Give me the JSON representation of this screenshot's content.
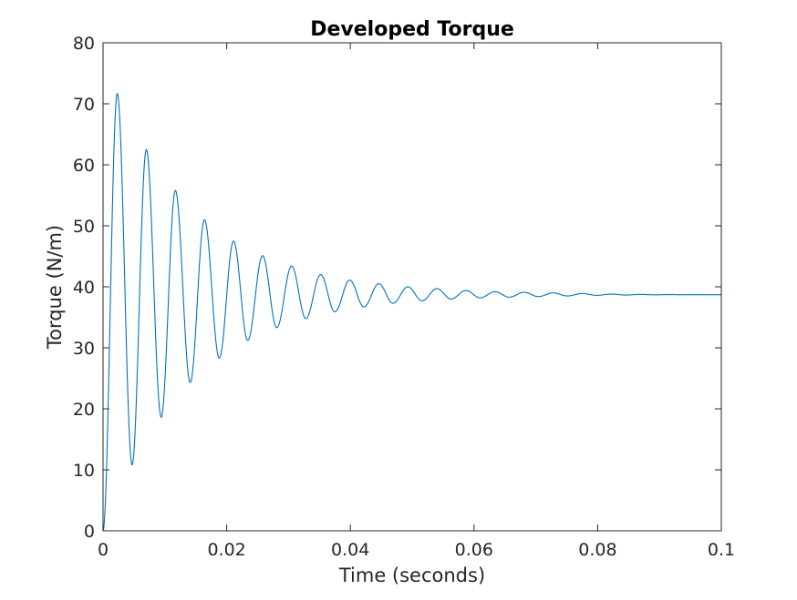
{
  "chart_data": {
    "type": "line",
    "title": "Developed Torque",
    "xlabel": "Time (seconds)",
    "ylabel": "Torque (N/m)",
    "xlim": [
      0,
      0.1
    ],
    "ylim": [
      0,
      80
    ],
    "xticks": [
      "0",
      "0.02",
      "0.04",
      "0.06",
      "0.08",
      "0.1"
    ],
    "yticks": [
      "0",
      "10",
      "20",
      "30",
      "40",
      "50",
      "60",
      "70",
      "80"
    ],
    "grid": false,
    "box": true,
    "line_color": "#0072BD",
    "series": [
      {
        "x": [
          0,
          0.0023,
          0.0047,
          0.007,
          0.0094,
          0.0117,
          0.0141,
          0.0164,
          0.0188,
          0.0211,
          0.0234,
          0.0258,
          0.0281,
          0.0305,
          0.0328,
          0.0352,
          0.0375,
          0.0399,
          0.0422,
          0.0446,
          0.0469,
          0.0493,
          0.0516,
          0.054,
          0.0563,
          0.0587,
          0.061,
          0.0634,
          0.0657,
          0.0681,
          0.0704,
          0.0728,
          0.0751,
          0.0775,
          0.0798,
          0.0822,
          0.0845,
          0.0869,
          0.0892,
          0.0916,
          0.0939,
          0.1
        ],
        "y": [
          0,
          71.7,
          10.8,
          62.5,
          18.6,
          55.8,
          24.3,
          51.0,
          28.3,
          47.5,
          31.2,
          45.1,
          33.3,
          43.4,
          34.8,
          42.0,
          35.9,
          41.1,
          36.7,
          40.5,
          37.3,
          40.0,
          37.7,
          39.7,
          38.0,
          39.4,
          38.2,
          39.2,
          38.3,
          39.1,
          38.4,
          39.0,
          38.5,
          38.9,
          38.6,
          38.8,
          38.65,
          38.75,
          38.68,
          38.72,
          38.7,
          38.7
        ]
      }
    ]
  }
}
